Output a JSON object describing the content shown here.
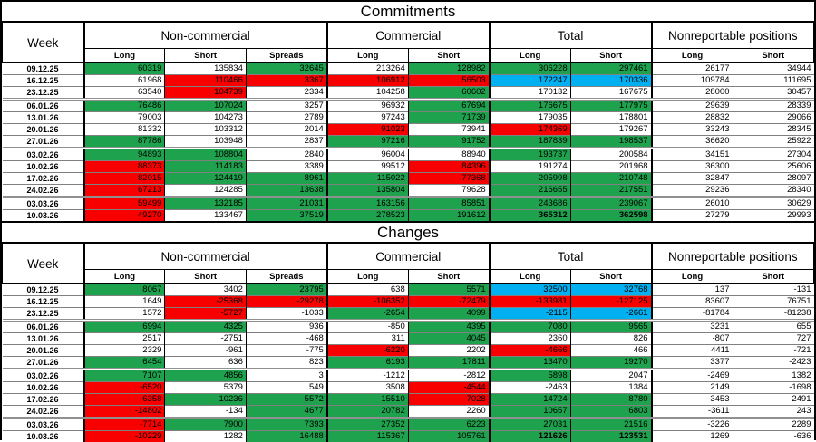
{
  "report": {
    "colors": {
      "green": "#1EA24E",
      "red": "#F80000",
      "blue": "#00B0F0"
    },
    "tables": [
      {
        "title": "Commitments",
        "week_label": "Week",
        "groups": [
          {
            "label": "Non-commercial",
            "span": 3
          },
          {
            "label": "Commercial",
            "span": 2
          },
          {
            "label": "Total",
            "span": 2
          },
          {
            "label": "Nonreportable positions",
            "span": 2
          }
        ],
        "columns": [
          "Long",
          "Short",
          "Spreads",
          "Long",
          "Short",
          "Long",
          "Short",
          "Long",
          "Short"
        ],
        "rows": [
          {
            "week": "09.12.25",
            "m": false,
            "values": [
              60319,
              135834,
              32645,
              213264,
              128982,
              306228,
              297461,
              26177,
              34944
            ],
            "bg": [
              "g",
              "",
              "g",
              "",
              "g",
              "g",
              "g",
              "",
              ""
            ]
          },
          {
            "week": "16.12.25",
            "m": false,
            "values": [
              61968,
              110466,
              3367,
              106912,
              56503,
              172247,
              170336,
              109784,
              111695
            ],
            "bg": [
              "",
              "r",
              "r",
              "r",
              "r",
              "b",
              "b",
              "",
              ""
            ]
          },
          {
            "week": "23.12.25",
            "m": false,
            "values": [
              63540,
              104739,
              2334,
              104258,
              60602,
              170132,
              167675,
              28000,
              30457
            ],
            "bg": [
              "",
              "r",
              "",
              "",
              "g",
              "",
              "",
              "",
              ""
            ]
          },
          {
            "week": "06.01.26",
            "m": true,
            "values": [
              76486,
              107024,
              3257,
              96932,
              67694,
              176675,
              177975,
              29639,
              28339
            ],
            "bg": [
              "g",
              "g",
              "",
              "",
              "g",
              "g",
              "g",
              "",
              ""
            ]
          },
          {
            "week": "13.01.26",
            "m": false,
            "values": [
              79003,
              104273,
              2789,
              97243,
              71739,
              179035,
              178801,
              28832,
              29066
            ],
            "bg": [
              "",
              "",
              "",
              "",
              "g",
              "",
              "",
              "",
              ""
            ]
          },
          {
            "week": "20.01.26",
            "m": false,
            "values": [
              81332,
              103312,
              2014,
              91023,
              73941,
              174369,
              179267,
              33243,
              28345
            ],
            "bg": [
              "",
              "",
              "",
              "r",
              "",
              "r",
              "",
              "",
              ""
            ]
          },
          {
            "week": "27.01.26",
            "m": false,
            "values": [
              87786,
              103948,
              2837,
              97216,
              91752,
              187839,
              198537,
              36620,
              25922
            ],
            "bg": [
              "g",
              "",
              "",
              "g",
              "g",
              "g",
              "g",
              "",
              ""
            ]
          },
          {
            "week": "03.02.26",
            "m": true,
            "values": [
              94893,
              108804,
              2840,
              96004,
              88940,
              193737,
              200584,
              34151,
              27304
            ],
            "bg": [
              "g",
              "g",
              "",
              "",
              "",
              "g",
              "",
              "",
              ""
            ]
          },
          {
            "week": "10.02.26",
            "m": false,
            "values": [
              88373,
              114183,
              3389,
              99512,
              84396,
              191274,
              201968,
              36300,
              25606
            ],
            "bg": [
              "r",
              "g",
              "",
              "",
              "r",
              "",
              "",
              "",
              ""
            ]
          },
          {
            "week": "17.02.26",
            "m": false,
            "values": [
              82015,
              124419,
              8961,
              115022,
              77368,
              205998,
              210748,
              32847,
              28097
            ],
            "bg": [
              "r",
              "g",
              "g",
              "g",
              "r",
              "g",
              "g",
              "",
              ""
            ]
          },
          {
            "week": "24.02.26",
            "m": false,
            "values": [
              67213,
              124285,
              13638,
              135804,
              79628,
              216655,
              217551,
              29236,
              28340
            ],
            "bg": [
              "r",
              "",
              "g",
              "g",
              "",
              "g",
              "g",
              "",
              ""
            ]
          },
          {
            "week": "03.03.26",
            "m": true,
            "values": [
              59499,
              132185,
              21031,
              163156,
              85851,
              243686,
              239067,
              26010,
              30629
            ],
            "bg": [
              "r",
              "g",
              "g",
              "g",
              "g",
              "g",
              "g",
              "",
              ""
            ]
          },
          {
            "week": "10.03.26",
            "m": false,
            "values": [
              49270,
              133467,
              37519,
              278523,
              191612,
              365312,
              362598,
              27279,
              29993
            ],
            "bg": [
              "r",
              "",
              "g",
              "g",
              "g",
              "g",
              "g",
              "",
              ""
            ],
            "bold": [
              5,
              6
            ]
          }
        ]
      },
      {
        "title": "Changes",
        "week_label": "Week",
        "groups": [
          {
            "label": "Non-commercial",
            "span": 3
          },
          {
            "label": "Commercial",
            "span": 2
          },
          {
            "label": "Total",
            "span": 2
          },
          {
            "label": "Nonreportable positions",
            "span": 2
          }
        ],
        "columns": [
          "Long",
          "Short",
          "Spreads",
          "Long",
          "Short",
          "Long",
          "Short",
          "Long",
          "Short"
        ],
        "rows": [
          {
            "week": "09.12.25",
            "m": false,
            "values": [
              8067,
              3402,
              23795,
              638,
              5571,
              32500,
              32768,
              137,
              -131
            ],
            "bg": [
              "g",
              "",
              "g",
              "",
              "g",
              "b",
              "b",
              "",
              ""
            ]
          },
          {
            "week": "16.12.25",
            "m": false,
            "values": [
              1649,
              -25368,
              -29278,
              -106352,
              -72479,
              -133981,
              -127125,
              83607,
              76751
            ],
            "bg": [
              "",
              "r",
              "r",
              "r",
              "r",
              "r",
              "r",
              "",
              ""
            ]
          },
          {
            "week": "23.12.25",
            "m": false,
            "values": [
              1572,
              -5727,
              -1033,
              -2654,
              4099,
              -2115,
              -2661,
              -81784,
              -81238
            ],
            "bg": [
              "",
              "r",
              "",
              "g",
              "g",
              "b",
              "b",
              "",
              ""
            ]
          },
          {
            "week": "06.01.26",
            "m": true,
            "values": [
              6994,
              4325,
              936,
              -850,
              4395,
              7080,
              9565,
              3231,
              655
            ],
            "bg": [
              "g",
              "g",
              "",
              "",
              "g",
              "g",
              "g",
              "",
              ""
            ]
          },
          {
            "week": "13.01.26",
            "m": false,
            "values": [
              2517,
              -2751,
              -468,
              311,
              4045,
              2360,
              826,
              -807,
              727
            ],
            "bg": [
              "",
              "",
              "",
              "",
              "g",
              "",
              "",
              "",
              ""
            ]
          },
          {
            "week": "20.01.26",
            "m": false,
            "values": [
              2329,
              -961,
              -775,
              -6220,
              2202,
              -4666,
              466,
              4411,
              -721
            ],
            "bg": [
              "",
              "",
              "",
              "r",
              "",
              "r",
              "",
              "",
              ""
            ]
          },
          {
            "week": "27.01.26",
            "m": false,
            "values": [
              6454,
              636,
              823,
              6193,
              17811,
              13470,
              19270,
              3377,
              -2423
            ],
            "bg": [
              "g",
              "",
              "",
              "g",
              "g",
              "g",
              "g",
              "",
              ""
            ]
          },
          {
            "week": "03.02.26",
            "m": true,
            "values": [
              7107,
              4856,
              3,
              -1212,
              -2812,
              5898,
              2047,
              -2469,
              1382
            ],
            "bg": [
              "g",
              "g",
              "",
              "",
              "",
              "g",
              "",
              "",
              ""
            ]
          },
          {
            "week": "10.02.26",
            "m": false,
            "values": [
              -6520,
              5379,
              549,
              3508,
              -4544,
              -2463,
              1384,
              2149,
              -1698
            ],
            "bg": [
              "r",
              "",
              "",
              "",
              "r",
              "",
              "",
              "",
              ""
            ]
          },
          {
            "week": "17.02.26",
            "m": false,
            "values": [
              -6358,
              10236,
              5572,
              15510,
              -7028,
              14724,
              8780,
              -3453,
              2491
            ],
            "bg": [
              "r",
              "g",
              "g",
              "g",
              "r",
              "g",
              "g",
              "",
              ""
            ]
          },
          {
            "week": "24.02.26",
            "m": false,
            "values": [
              -14802,
              -134,
              4677,
              20782,
              2260,
              10657,
              6803,
              -3611,
              243
            ],
            "bg": [
              "r",
              "",
              "g",
              "g",
              "",
              "g",
              "g",
              "",
              ""
            ]
          },
          {
            "week": "03.03.26",
            "m": true,
            "values": [
              -7714,
              7900,
              7393,
              27352,
              6223,
              27031,
              21516,
              -3226,
              2289
            ],
            "bg": [
              "r",
              "g",
              "g",
              "g",
              "g",
              "g",
              "g",
              "",
              ""
            ]
          },
          {
            "week": "10.03.26",
            "m": false,
            "values": [
              -10229,
              1282,
              16488,
              115367,
              105761,
              121626,
              123531,
              1269,
              -636
            ],
            "bg": [
              "r",
              "",
              "g",
              "g",
              "g",
              "g",
              "g",
              "",
              ""
            ],
            "bold": [
              5,
              6
            ]
          }
        ]
      }
    ]
  }
}
